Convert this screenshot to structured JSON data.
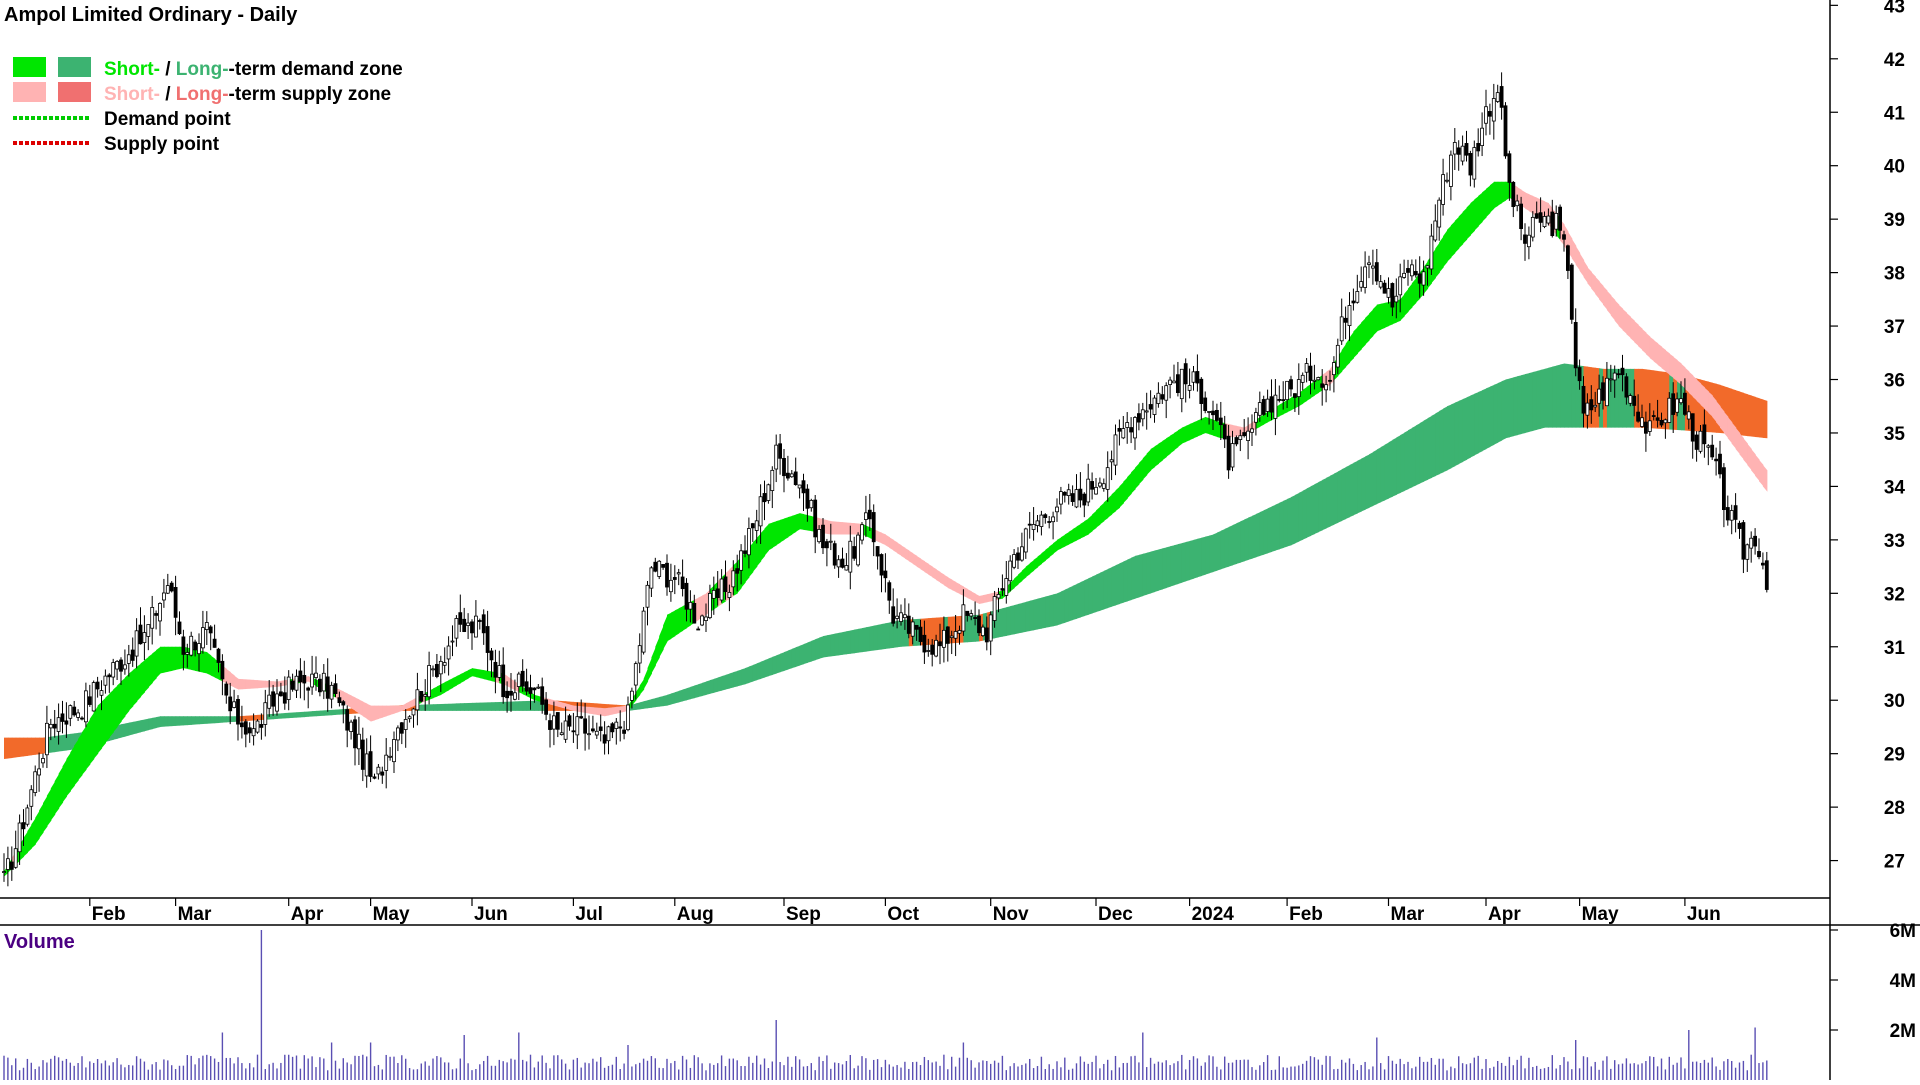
{
  "chart_data": {
    "type": "candlestick",
    "title": "Ampol Limited Ordinary - Daily",
    "legend": {
      "placement": "top-left",
      "entries": [
        {
          "key": "demand_zone",
          "prefix": "Short-",
          "sep": " / ",
          "mid": "Long-",
          "suffix": "-term demand zone",
          "short_color": "#00e600",
          "long_color": "#3cb371"
        },
        {
          "key": "supply_zone",
          "prefix": "Short-",
          "sep": " / ",
          "mid": "Long-",
          "suffix": "-term supply zone",
          "short_color": "#ffb3b3",
          "long_color": "#f07070"
        },
        {
          "key": "demand_point",
          "label": "Demand point",
          "color": "#00cc00"
        },
        {
          "key": "supply_point",
          "label": "Supply point",
          "color": "#dd0000"
        }
      ]
    },
    "x_axis": {
      "tick_labels": [
        "Feb",
        "Mar",
        "Apr",
        "May",
        "Jun",
        "Jul",
        "Aug",
        "Sep",
        "Oct",
        "Nov",
        "Dec",
        "2024",
        "Feb",
        "Mar",
        "Apr",
        "May",
        "Jun"
      ]
    },
    "y_axis": {
      "side": "right",
      "ticks": [
        27,
        28,
        29,
        30,
        31,
        32,
        33,
        34,
        35,
        36,
        37,
        38,
        39,
        40,
        41,
        42,
        43
      ],
      "range": [
        26.3,
        43.1
      ]
    },
    "price_anchors": [
      {
        "x": 0,
        "c": 26.6
      },
      {
        "x": 4,
        "c": 27.5
      },
      {
        "x": 8,
        "c": 28.6
      },
      {
        "x": 12,
        "c": 29.6
      },
      {
        "x": 20,
        "c": 29.9
      },
      {
        "x": 28,
        "c": 30.6
      },
      {
        "x": 36,
        "c": 31.2
      },
      {
        "x": 42,
        "c": 32.2
      },
      {
        "x": 46,
        "c": 31.0
      },
      {
        "x": 52,
        "c": 31.3
      },
      {
        "x": 58,
        "c": 29.8
      },
      {
        "x": 64,
        "c": 29.4
      },
      {
        "x": 70,
        "c": 30.1
      },
      {
        "x": 78,
        "c": 30.4
      },
      {
        "x": 84,
        "c": 30.2
      },
      {
        "x": 90,
        "c": 29.3
      },
      {
        "x": 95,
        "c": 28.4
      },
      {
        "x": 100,
        "c": 29.4
      },
      {
        "x": 108,
        "c": 30.3
      },
      {
        "x": 116,
        "c": 31.3
      },
      {
        "x": 122,
        "c": 31.4
      },
      {
        "x": 128,
        "c": 30.3
      },
      {
        "x": 136,
        "c": 30.2
      },
      {
        "x": 142,
        "c": 29.4
      },
      {
        "x": 148,
        "c": 29.5
      },
      {
        "x": 154,
        "c": 29.2
      },
      {
        "x": 160,
        "c": 29.7
      },
      {
        "x": 166,
        "c": 32.5
      },
      {
        "x": 172,
        "c": 32.3
      },
      {
        "x": 178,
        "c": 31.5
      },
      {
        "x": 186,
        "c": 32.2
      },
      {
        "x": 192,
        "c": 33.2
      },
      {
        "x": 198,
        "c": 34.6
      },
      {
        "x": 204,
        "c": 34.1
      },
      {
        "x": 210,
        "c": 32.9
      },
      {
        "x": 216,
        "c": 32.6
      },
      {
        "x": 222,
        "c": 33.4
      },
      {
        "x": 228,
        "c": 31.6
      },
      {
        "x": 234,
        "c": 31.2
      },
      {
        "x": 240,
        "c": 31.0
      },
      {
        "x": 246,
        "c": 31.6
      },
      {
        "x": 252,
        "c": 31.3
      },
      {
        "x": 258,
        "c": 32.6
      },
      {
        "x": 264,
        "c": 33.3
      },
      {
        "x": 270,
        "c": 33.7
      },
      {
        "x": 276,
        "c": 33.8
      },
      {
        "x": 282,
        "c": 34.3
      },
      {
        "x": 288,
        "c": 35.2
      },
      {
        "x": 294,
        "c": 35.6
      },
      {
        "x": 300,
        "c": 36.0
      },
      {
        "x": 306,
        "c": 35.9
      },
      {
        "x": 310,
        "c": 35.4
      },
      {
        "x": 314,
        "c": 34.5
      },
      {
        "x": 318,
        "c": 34.8
      },
      {
        "x": 324,
        "c": 35.6
      },
      {
        "x": 330,
        "c": 35.8
      },
      {
        "x": 336,
        "c": 36.2
      },
      {
        "x": 340,
        "c": 36.0
      },
      {
        "x": 344,
        "c": 37.3
      },
      {
        "x": 350,
        "c": 38.4
      },
      {
        "x": 356,
        "c": 37.4
      },
      {
        "x": 360,
        "c": 38.1
      },
      {
        "x": 364,
        "c": 37.9
      },
      {
        "x": 368,
        "c": 39.4
      },
      {
        "x": 372,
        "c": 40.5
      },
      {
        "x": 376,
        "c": 40.0
      },
      {
        "x": 380,
        "c": 41.0
      },
      {
        "x": 383,
        "c": 41.5
      },
      {
        "x": 386,
        "c": 39.6
      },
      {
        "x": 390,
        "c": 38.6
      },
      {
        "x": 394,
        "c": 39.0
      },
      {
        "x": 398,
        "c": 38.9
      },
      {
        "x": 401,
        "c": 38.2
      },
      {
        "x": 403,
        "c": 36.3
      },
      {
        "x": 405,
        "c": 35.3
      },
      {
        "x": 410,
        "c": 35.8
      },
      {
        "x": 414,
        "c": 36.2
      },
      {
        "x": 418,
        "c": 35.6
      },
      {
        "x": 422,
        "c": 35.0
      },
      {
        "x": 426,
        "c": 35.4
      },
      {
        "x": 430,
        "c": 35.6
      },
      {
        "x": 434,
        "c": 34.9
      },
      {
        "x": 438,
        "c": 34.5
      },
      {
        "x": 442,
        "c": 33.5
      },
      {
        "x": 446,
        "c": 32.8
      },
      {
        "x": 449,
        "c": 33.1
      },
      {
        "x": 452,
        "c": 32.3
      }
    ],
    "long_zone_anchors": [
      {
        "x": 0,
        "lo": 28.9,
        "hi": 29.3
      },
      {
        "x": 10,
        "lo": 29.0,
        "hi": 29.3
      },
      {
        "x": 20,
        "lo": 29.1,
        "hi": 29.4
      },
      {
        "x": 40,
        "lo": 29.5,
        "hi": 29.7
      },
      {
        "x": 60,
        "lo": 29.6,
        "hi": 29.7
      },
      {
        "x": 80,
        "lo": 29.7,
        "hi": 29.8
      },
      {
        "x": 100,
        "lo": 29.8,
        "hi": 29.9
      },
      {
        "x": 120,
        "lo": 29.8,
        "hi": 29.95
      },
      {
        "x": 140,
        "lo": 29.8,
        "hi": 30.0
      },
      {
        "x": 160,
        "lo": 29.8,
        "hi": 29.9
      },
      {
        "x": 170,
        "lo": 29.9,
        "hi": 30.1
      },
      {
        "x": 190,
        "lo": 30.3,
        "hi": 30.6
      },
      {
        "x": 210,
        "lo": 30.8,
        "hi": 31.2
      },
      {
        "x": 230,
        "lo": 31.0,
        "hi": 31.5
      },
      {
        "x": 250,
        "lo": 31.1,
        "hi": 31.6
      },
      {
        "x": 270,
        "lo": 31.4,
        "hi": 32.0
      },
      {
        "x": 290,
        "lo": 31.9,
        "hi": 32.7
      },
      {
        "x": 310,
        "lo": 32.4,
        "hi": 33.1
      },
      {
        "x": 330,
        "lo": 32.9,
        "hi": 33.8
      },
      {
        "x": 350,
        "lo": 33.6,
        "hi": 34.6
      },
      {
        "x": 370,
        "lo": 34.3,
        "hi": 35.5
      },
      {
        "x": 385,
        "lo": 34.9,
        "hi": 36.0
      },
      {
        "x": 395,
        "lo": 35.1,
        "hi": 36.2
      },
      {
        "x": 400,
        "lo": 35.1,
        "hi": 36.3
      },
      {
        "x": 410,
        "lo": 35.1,
        "hi": 36.2
      },
      {
        "x": 420,
        "lo": 35.1,
        "hi": 36.2
      },
      {
        "x": 430,
        "lo": 35.05,
        "hi": 36.1
      },
      {
        "x": 440,
        "lo": 35.0,
        "hi": 35.9
      },
      {
        "x": 452,
        "lo": 34.9,
        "hi": 35.6
      }
    ],
    "short_zone_anchors": [
      {
        "x": 0,
        "lo": 26.7,
        "hi": 26.8
      },
      {
        "x": 8,
        "lo": 27.3,
        "hi": 27.8
      },
      {
        "x": 16,
        "lo": 28.2,
        "hi": 28.9
      },
      {
        "x": 24,
        "lo": 29.0,
        "hi": 29.9
      },
      {
        "x": 32,
        "lo": 29.8,
        "hi": 30.5
      },
      {
        "x": 40,
        "lo": 30.5,
        "hi": 31.0
      },
      {
        "x": 46,
        "lo": 30.6,
        "hi": 31.0
      },
      {
        "x": 52,
        "lo": 30.5,
        "hi": 30.9
      },
      {
        "x": 60,
        "lo": 30.2,
        "hi": 30.4
      },
      {
        "x": 70,
        "lo": 30.25,
        "hi": 30.35
      },
      {
        "x": 78,
        "lo": 30.35,
        "hi": 30.45
      },
      {
        "x": 86,
        "lo": 30.0,
        "hi": 30.2
      },
      {
        "x": 94,
        "lo": 29.6,
        "hi": 29.9
      },
      {
        "x": 102,
        "lo": 29.8,
        "hi": 29.9
      },
      {
        "x": 112,
        "lo": 30.1,
        "hi": 30.3
      },
      {
        "x": 120,
        "lo": 30.45,
        "hi": 30.6
      },
      {
        "x": 128,
        "lo": 30.3,
        "hi": 30.5
      },
      {
        "x": 136,
        "lo": 30.0,
        "hi": 30.1
      },
      {
        "x": 146,
        "lo": 29.8,
        "hi": 29.9
      },
      {
        "x": 154,
        "lo": 29.7,
        "hi": 29.85
      },
      {
        "x": 160,
        "lo": 29.8,
        "hi": 29.9
      },
      {
        "x": 164,
        "lo": 30.2,
        "hi": 30.4
      },
      {
        "x": 170,
        "lo": 31.1,
        "hi": 31.6
      },
      {
        "x": 180,
        "lo": 31.6,
        "hi": 32.0
      },
      {
        "x": 188,
        "lo": 32.0,
        "hi": 32.6
      },
      {
        "x": 196,
        "lo": 32.8,
        "hi": 33.3
      },
      {
        "x": 204,
        "lo": 33.2,
        "hi": 33.5
      },
      {
        "x": 212,
        "lo": 33.1,
        "hi": 33.35
      },
      {
        "x": 220,
        "lo": 33.1,
        "hi": 33.3
      },
      {
        "x": 226,
        "lo": 32.9,
        "hi": 33.1
      },
      {
        "x": 234,
        "lo": 32.5,
        "hi": 32.7
      },
      {
        "x": 242,
        "lo": 32.1,
        "hi": 32.3
      },
      {
        "x": 250,
        "lo": 31.8,
        "hi": 31.95
      },
      {
        "x": 256,
        "lo": 31.9,
        "hi": 32.05
      },
      {
        "x": 262,
        "lo": 32.3,
        "hi": 32.5
      },
      {
        "x": 270,
        "lo": 32.8,
        "hi": 33.0
      },
      {
        "x": 278,
        "lo": 33.1,
        "hi": 33.4
      },
      {
        "x": 286,
        "lo": 33.6,
        "hi": 34.0
      },
      {
        "x": 294,
        "lo": 34.3,
        "hi": 34.7
      },
      {
        "x": 302,
        "lo": 34.8,
        "hi": 35.1
      },
      {
        "x": 308,
        "lo": 35.0,
        "hi": 35.3
      },
      {
        "x": 312,
        "lo": 34.9,
        "hi": 35.2
      },
      {
        "x": 318,
        "lo": 34.95,
        "hi": 35.1
      },
      {
        "x": 324,
        "lo": 35.2,
        "hi": 35.4
      },
      {
        "x": 332,
        "lo": 35.5,
        "hi": 35.75
      },
      {
        "x": 340,
        "lo": 35.9,
        "hi": 36.2
      },
      {
        "x": 346,
        "lo": 36.4,
        "hi": 36.9
      },
      {
        "x": 352,
        "lo": 36.9,
        "hi": 37.4
      },
      {
        "x": 358,
        "lo": 37.1,
        "hi": 37.5
      },
      {
        "x": 364,
        "lo": 37.6,
        "hi": 38.1
      },
      {
        "x": 370,
        "lo": 38.2,
        "hi": 38.8
      },
      {
        "x": 376,
        "lo": 38.7,
        "hi": 39.3
      },
      {
        "x": 382,
        "lo": 39.2,
        "hi": 39.7
      },
      {
        "x": 386,
        "lo": 39.4,
        "hi": 39.7
      },
      {
        "x": 390,
        "lo": 39.2,
        "hi": 39.5
      },
      {
        "x": 396,
        "lo": 38.9,
        "hi": 39.3
      },
      {
        "x": 400,
        "lo": 38.5,
        "hi": 38.9
      },
      {
        "x": 406,
        "lo": 37.8,
        "hi": 38.1
      },
      {
        "x": 414,
        "lo": 37.0,
        "hi": 37.4
      },
      {
        "x": 422,
        "lo": 36.4,
        "hi": 36.8
      },
      {
        "x": 430,
        "lo": 35.9,
        "hi": 36.3
      },
      {
        "x": 438,
        "lo": 35.3,
        "hi": 35.7
      },
      {
        "x": 446,
        "lo": 34.5,
        "hi": 34.9
      },
      {
        "x": 452,
        "lo": 33.9,
        "hi": 34.3
      }
    ],
    "month_ticks": [
      {
        "label": "Feb",
        "x": 22
      },
      {
        "label": "Mar",
        "x": 44
      },
      {
        "label": "Apr",
        "x": 73
      },
      {
        "label": "May",
        "x": 94
      },
      {
        "label": "Jun",
        "x": 120
      },
      {
        "label": "Jul",
        "x": 146
      },
      {
        "label": "Aug",
        "x": 172
      },
      {
        "label": "Sep",
        "x": 200
      },
      {
        "label": "Oct",
        "x": 226
      },
      {
        "label": "Nov",
        "x": 253
      },
      {
        "label": "Dec",
        "x": 280
      },
      {
        "label": "2024",
        "x": 304
      },
      {
        "label": "Feb",
        "x": 329
      },
      {
        "label": "Mar",
        "x": 355
      },
      {
        "label": "Apr",
        "x": 380
      },
      {
        "label": "May",
        "x": 404
      },
      {
        "label": "Jun",
        "x": 431
      }
    ],
    "volume": {
      "title": "Volume",
      "ticks": [
        {
          "value": 2000000,
          "label": "2M"
        },
        {
          "value": 4000000,
          "label": "4M"
        },
        {
          "value": 6000000,
          "label": "6M"
        }
      ],
      "range": [
        0,
        6200000
      ],
      "typical": 700000,
      "spikes": [
        {
          "x": 56,
          "v": 1900000
        },
        {
          "x": 66,
          "v": 6000000
        },
        {
          "x": 84,
          "v": 1500000
        },
        {
          "x": 94,
          "v": 1500000
        },
        {
          "x": 118,
          "v": 1800000
        },
        {
          "x": 132,
          "v": 1900000
        },
        {
          "x": 160,
          "v": 1400000
        },
        {
          "x": 198,
          "v": 2400000
        },
        {
          "x": 246,
          "v": 1500000
        },
        {
          "x": 292,
          "v": 1900000
        },
        {
          "x": 352,
          "v": 1700000
        },
        {
          "x": 403,
          "v": 1600000
        },
        {
          "x": 432,
          "v": 2000000
        },
        {
          "x": 449,
          "v": 2100000
        }
      ]
    }
  }
}
